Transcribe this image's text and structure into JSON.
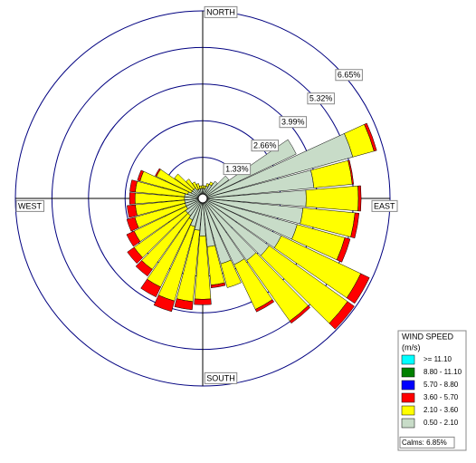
{
  "chart_data": {
    "type": "windrose",
    "x": [
      0,
      10,
      20,
      30,
      40,
      50,
      60,
      70,
      80,
      90,
      100,
      110,
      120,
      130,
      140,
      150,
      160,
      170,
      180,
      190,
      200,
      210,
      220,
      230,
      240,
      250,
      260,
      270,
      280,
      290,
      300,
      310,
      320,
      330,
      340,
      350
    ],
    "rlim": [
      0,
      6.65
    ],
    "rticks": [
      {
        "value": 1.33,
        "label": "1.33%"
      },
      {
        "value": 2.66,
        "label": "2.66%"
      },
      {
        "value": 3.99,
        "label": "3.99%"
      },
      {
        "value": 5.32,
        "label": "5.32%"
      },
      {
        "value": 6.65,
        "label": "6.65%"
      }
    ],
    "compass": {
      "north": "NORTH",
      "east": "EAST",
      "south": "SOUTH",
      "west": "WEST"
    },
    "legend_title": "WIND SPEED",
    "legend_units": "(m/s)",
    "calms_label": "Calms: 6.85%",
    "series": [
      {
        "name": ">= 11.10",
        "color": "#00ffff",
        "values": [
          0,
          0,
          0,
          0,
          0,
          0,
          0,
          0,
          0,
          0,
          0,
          0,
          0,
          0,
          0,
          0,
          0,
          0,
          0,
          0,
          0,
          0,
          0,
          0,
          0,
          0,
          0,
          0,
          0,
          0,
          0,
          0,
          0,
          0,
          0,
          0
        ]
      },
      {
        "name": "8.80 - 11.10",
        "color": "#008000",
        "values": [
          0,
          0,
          0,
          0,
          0,
          0,
          0,
          0,
          0,
          0,
          0,
          0,
          0,
          0,
          0,
          0,
          0,
          0,
          0,
          0,
          0,
          0,
          0,
          0,
          0,
          0,
          0,
          0,
          0,
          0,
          0,
          0,
          0,
          0,
          0,
          0
        ]
      },
      {
        "name": "5.70 - 8.80",
        "color": "#0000ff",
        "values": [
          0,
          0,
          0,
          0,
          0,
          0,
          0,
          0,
          0,
          0,
          0,
          0,
          0,
          0,
          0,
          0,
          0,
          0,
          0,
          0,
          0,
          0,
          0,
          0,
          0,
          0,
          0,
          0,
          0,
          0,
          0,
          0,
          0,
          0,
          0,
          0
        ]
      },
      {
        "name": "3.60 - 5.70",
        "color": "#ff0000",
        "values": [
          0,
          0,
          0,
          0,
          0,
          0,
          0,
          0.1,
          0.05,
          0.1,
          0.15,
          0.2,
          0.35,
          0.3,
          0.1,
          0.1,
          0,
          0.1,
          0.2,
          0.3,
          0.4,
          0.4,
          0.3,
          0.3,
          0.3,
          0.3,
          0.3,
          0.2,
          0.2,
          0.1,
          0.05,
          0,
          0,
          0,
          0,
          0
        ]
      },
      {
        "name": "2.10 - 3.60",
        "color": "#ffff00",
        "values": [
          0.1,
          0.1,
          0.1,
          0.1,
          0,
          0,
          0,
          0.8,
          1.4,
          1.9,
          1.9,
          1.8,
          3.2,
          3.5,
          2.7,
          1.8,
          0.9,
          1.4,
          2.3,
          2.6,
          2.8,
          2.7,
          2.4,
          2.3,
          2.1,
          1.9,
          1.8,
          1.8,
          1.8,
          1.8,
          1.4,
          0.8,
          0.4,
          0.3,
          0.2,
          0.1
        ]
      },
      {
        "name": "0.50 - 2.10",
        "color": "#c8dcc8",
        "values": [
          0.2,
          0.2,
          0.3,
          0.4,
          0.6,
          1.0,
          3.6,
          5.5,
          3.9,
          3.6,
          3.5,
          3.4,
          3.0,
          2.8,
          2.6,
          2.5,
          2.3,
          1.6,
          1.2,
          1.0,
          0.9,
          0.7,
          0.6,
          0.6,
          0.5,
          0.5,
          0.5,
          0.5,
          0.5,
          0.4,
          0.3,
          0.3,
          0.3,
          0.2,
          0.2,
          0.2
        ]
      }
    ]
  }
}
